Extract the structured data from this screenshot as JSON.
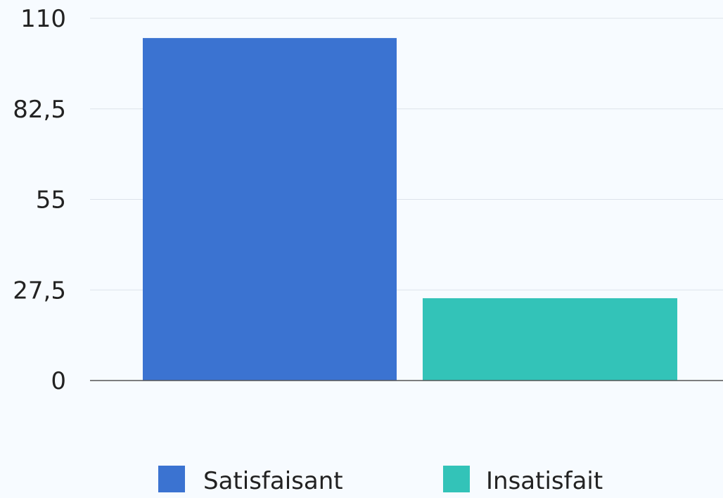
{
  "chart_data": {
    "type": "bar",
    "categories": [
      "Satisfaisant",
      "Insatisfait"
    ],
    "values": [
      104,
      25
    ],
    "colors": [
      "#3b73d1",
      "#33c3b8"
    ],
    "ylim": [
      0,
      110
    ],
    "yticks": [
      "0",
      "27,5",
      "55",
      "82,5",
      "110"
    ],
    "ytick_values": [
      0,
      27.5,
      55,
      82.5,
      110
    ],
    "grid": true,
    "legend_position": "bottom",
    "legend": [
      {
        "label": "Satisfaisant",
        "color": "#3b73d1"
      },
      {
        "label": "Insatisfait",
        "color": "#33c3b8"
      }
    ],
    "title": "",
    "xlabel": "",
    "ylabel": ""
  }
}
